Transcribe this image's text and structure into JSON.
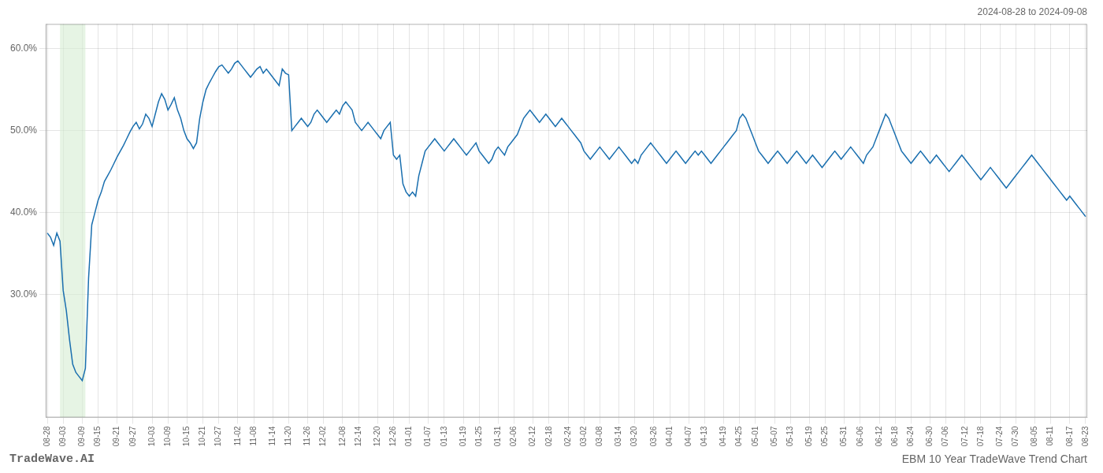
{
  "chart_data": {
    "type": "line",
    "title": "EBM 10 Year TradeWave Trend Chart",
    "subtitle": "2024-08-28 to 2024-09-08",
    "annotations": [
      "TradeWave.AI"
    ],
    "color": "#1a6faf",
    "highlight": {
      "start": 4,
      "end": 12,
      "color": "#d6ecd2"
    },
    "ylim": [
      15,
      63
    ],
    "yticks": [
      {
        "value": 30.0,
        "label": "30.0%"
      },
      {
        "value": 40.0,
        "label": "40.0%"
      },
      {
        "value": 50.0,
        "label": "50.0%"
      },
      {
        "value": 60.0,
        "label": "60.0%"
      }
    ],
    "grid": true,
    "categories": [
      "08-28",
      null,
      null,
      null,
      null,
      "09-03",
      null,
      null,
      null,
      null,
      null,
      "09-09",
      null,
      null,
      null,
      null,
      "09-15",
      null,
      null,
      null,
      null,
      null,
      "09-21",
      null,
      null,
      null,
      null,
      "09-27",
      null,
      null,
      null,
      null,
      null,
      "10-03",
      null,
      null,
      null,
      null,
      "10-09",
      null,
      null,
      null,
      null,
      null,
      "10-15",
      null,
      null,
      null,
      null,
      "10-21",
      null,
      null,
      null,
      null,
      "10-27",
      null,
      null,
      null,
      null,
      null,
      "11-02",
      null,
      null,
      null,
      null,
      "11-08",
      null,
      null,
      null,
      null,
      null,
      "11-14",
      null,
      null,
      null,
      null,
      "11-20",
      null,
      null,
      null,
      null,
      null,
      "11-26",
      null,
      null,
      null,
      null,
      "12-02",
      null,
      null,
      null,
      null,
      null,
      "12-08",
      null,
      null,
      null,
      null,
      "12-14",
      null,
      null,
      null,
      null,
      null,
      "12-20",
      null,
      null,
      null,
      null,
      "12-26",
      null,
      null,
      null,
      null,
      "01-01",
      null,
      null,
      null,
      null,
      null,
      "01-07",
      null,
      null,
      null,
      null,
      "01-13",
      null,
      null,
      null,
      null,
      null,
      "01-19",
      null,
      null,
      null,
      null,
      "01-25",
      null,
      null,
      null,
      null,
      null,
      "01-31",
      null,
      null,
      null,
      null,
      "02-06",
      null,
      null,
      null,
      null,
      null,
      "02-12",
      null,
      null,
      null,
      null,
      "02-18",
      null,
      null,
      null,
      null,
      null,
      "02-24",
      null,
      null,
      null,
      null,
      "03-02",
      null,
      null,
      null,
      null,
      "03-08",
      null,
      null,
      null,
      null,
      null,
      "03-14",
      null,
      null,
      null,
      null,
      "03-20",
      null,
      null,
      null,
      null,
      null,
      "03-26",
      null,
      null,
      null,
      null,
      "04-01",
      null,
      null,
      null,
      null,
      null,
      "04-07",
      null,
      null,
      null,
      null,
      "04-13",
      null,
      null,
      null,
      null,
      null,
      "04-19",
      null,
      null,
      null,
      null,
      "04-25",
      null,
      null,
      null,
      null,
      "05-01",
      null,
      null,
      null,
      null,
      null,
      "05-07",
      null,
      null,
      null,
      null,
      "05-13",
      null,
      null,
      null,
      null,
      null,
      "05-19",
      null,
      null,
      null,
      null,
      "05-25",
      null,
      null,
      null,
      null,
      null,
      "05-31",
      null,
      null,
      null,
      null,
      "06-06",
      null,
      null,
      null,
      null,
      null,
      "06-12",
      null,
      null,
      null,
      null,
      "06-18",
      null,
      null,
      null,
      null,
      "06-24",
      null,
      null,
      null,
      null,
      null,
      "06-30",
      null,
      null,
      null,
      null,
      "07-06",
      null,
      null,
      null,
      null,
      null,
      "07-12",
      null,
      null,
      null,
      null,
      "07-18",
      null,
      null,
      null,
      null,
      null,
      "07-24",
      null,
      null,
      null,
      null,
      "07-30",
      null,
      null,
      null,
      null,
      null,
      "08-05",
      null,
      null,
      null,
      null,
      "08-11",
      null,
      null,
      null,
      null,
      null,
      "08-17",
      null,
      null,
      null,
      null,
      "08-23"
    ],
    "values": [
      37.5,
      37.0,
      36.0,
      37.5,
      36.5,
      30.5,
      28.0,
      24.5,
      21.5,
      20.5,
      20.0,
      19.5,
      21.0,
      32.0,
      38.5,
      40.0,
      41.5,
      42.5,
      43.8,
      44.5,
      45.2,
      46.0,
      46.8,
      47.5,
      48.2,
      49.0,
      49.8,
      50.5,
      51.0,
      50.2,
      50.8,
      52.0,
      51.5,
      50.5,
      52.0,
      53.5,
      54.5,
      53.8,
      52.5,
      53.2,
      54.0,
      52.5,
      51.5,
      50.0,
      49.0,
      48.5,
      47.8,
      48.5,
      51.5,
      53.5,
      55.0,
      55.8,
      56.5,
      57.2,
      57.8,
      58.0,
      57.5,
      57.0,
      57.5,
      58.2,
      58.5,
      58.0,
      57.5,
      57.0,
      56.5,
      57.0,
      57.5,
      57.8,
      57.0,
      57.5,
      57.0,
      56.5,
      56.0,
      55.5,
      57.5,
      57.0,
      56.8,
      50.0,
      50.5,
      51.0,
      51.5,
      51.0,
      50.5,
      51.0,
      52.0,
      52.5,
      52.0,
      51.5,
      51.0,
      51.5,
      52.0,
      52.5,
      52.0,
      53.0,
      53.5,
      53.0,
      52.5,
      51.0,
      50.5,
      50.0,
      50.5,
      51.0,
      50.5,
      50.0,
      49.5,
      49.0,
      50.0,
      50.5,
      51.0,
      47.0,
      46.5,
      47.0,
      43.5,
      42.5,
      42.0,
      42.5,
      42.0,
      44.5,
      46.0,
      47.5,
      48.0,
      48.5,
      49.0,
      48.5,
      48.0,
      47.5,
      48.0,
      48.5,
      49.0,
      48.5,
      48.0,
      47.5,
      47.0,
      47.5,
      48.0,
      48.5,
      47.5,
      47.0,
      46.5,
      46.0,
      46.5,
      47.5,
      48.0,
      47.5,
      47.0,
      48.0,
      48.5,
      49.0,
      49.5,
      50.5,
      51.5,
      52.0,
      52.5,
      52.0,
      51.5,
      51.0,
      51.5,
      52.0,
      51.5,
      51.0,
      50.5,
      51.0,
      51.5,
      51.0,
      50.5,
      50.0,
      49.5,
      49.0,
      48.5,
      47.5,
      47.0,
      46.5,
      47.0,
      47.5,
      48.0,
      47.5,
      47.0,
      46.5,
      47.0,
      47.5,
      48.0,
      47.5,
      47.0,
      46.5,
      46.0,
      46.5,
      46.0,
      47.0,
      47.5,
      48.0,
      48.5,
      48.0,
      47.5,
      47.0,
      46.5,
      46.0,
      46.5,
      47.0,
      47.5,
      47.0,
      46.5,
      46.0,
      46.5,
      47.0,
      47.5,
      47.0,
      47.5,
      47.0,
      46.5,
      46.0,
      46.5,
      47.0,
      47.5,
      48.0,
      48.5,
      49.0,
      49.5,
      50.0,
      51.5,
      52.0,
      51.5,
      50.5,
      49.5,
      48.5,
      47.5,
      47.0,
      46.5,
      46.0,
      46.5,
      47.0,
      47.5,
      47.0,
      46.5,
      46.0,
      46.5,
      47.0,
      47.5,
      47.0,
      46.5,
      46.0,
      46.5,
      47.0,
      46.5,
      46.0,
      45.5,
      46.0,
      46.5,
      47.0,
      47.5,
      47.0,
      46.5,
      47.0,
      47.5,
      48.0,
      47.5,
      47.0,
      46.5,
      46.0,
      47.0,
      47.5,
      48.0,
      49.0,
      50.0,
      51.0,
      52.0,
      51.5,
      50.5,
      49.5,
      48.5,
      47.5,
      47.0,
      46.5,
      46.0,
      46.5,
      47.0,
      47.5,
      47.0,
      46.5,
      46.0,
      46.5,
      47.0,
      46.5,
      46.0,
      45.5,
      45.0,
      45.5,
      46.0,
      46.5,
      47.0,
      46.5,
      46.0,
      45.5,
      45.0,
      44.5,
      44.0,
      44.5,
      45.0,
      45.5,
      45.0,
      44.5,
      44.0,
      43.5,
      43.0,
      43.5,
      44.0,
      44.5,
      45.0,
      45.5,
      46.0,
      46.5,
      47.0,
      46.5,
      46.0,
      45.5,
      45.0,
      44.5,
      44.0,
      43.5,
      43.0,
      42.5,
      42.0,
      41.5,
      42.0,
      41.5,
      41.0,
      40.5,
      40.0,
      39.5
    ]
  }
}
